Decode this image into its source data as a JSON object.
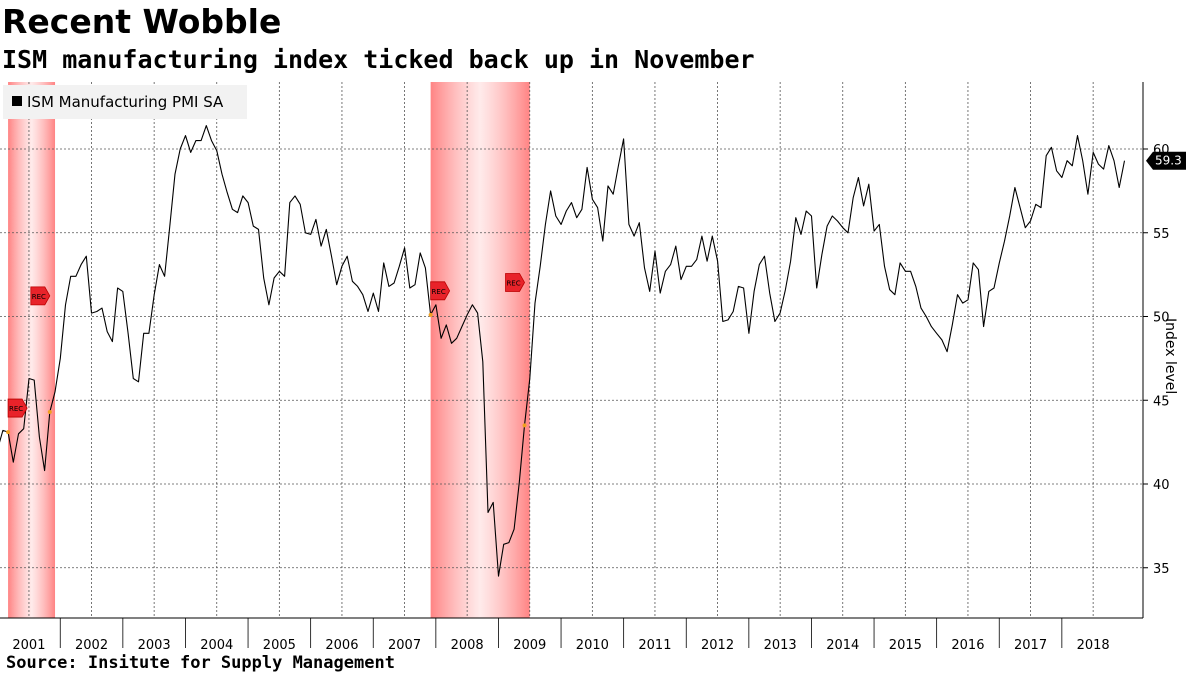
{
  "header": {
    "title": "Recent Wobble",
    "subtitle": "ISM manufacturing index ticked back up in November"
  },
  "footer": {
    "source": "Source: Insitute for Supply Management"
  },
  "colors": {
    "line": "#000000",
    "recession_band": "#ff4d4d",
    "recession_marker": "#e8232a",
    "grid": "#555555"
  },
  "chart_data": {
    "type": "line",
    "title": "Recent Wobble",
    "subtitle": "ISM manufacturing index ticked back up in November",
    "legend": {
      "entries": [
        "ISM Manufacturing PMI SA"
      ],
      "placement": "top-left"
    },
    "ylabel": "Index level",
    "ylim": [
      32,
      64
    ],
    "y_ticks": [
      35,
      40,
      45,
      50,
      55,
      60
    ],
    "x_ticks": [
      "2001",
      "2002",
      "2003",
      "2004",
      "2005",
      "2006",
      "2007",
      "2008",
      "2009",
      "2010",
      "2011",
      "2012",
      "2013",
      "2014",
      "2015",
      "2016",
      "2017",
      "2018"
    ],
    "xlim": [
      "2000-11",
      "2018-12"
    ],
    "grid": true,
    "last_value_label": "59.3",
    "recession_marker_label": "REC",
    "recessions": [
      {
        "start": "2001-03",
        "end": "2001-11"
      },
      {
        "start": "2007-12",
        "end": "2009-06"
      }
    ],
    "series": [
      {
        "name": "ISM Manufacturing PMI SA",
        "start": "2000-11",
        "frequency": "monthly",
        "values": [
          44.0,
          42.3,
          42.1,
          43.2,
          43.1,
          41.3,
          43.0,
          43.3,
          46.3,
          46.2,
          42.8,
          40.8,
          44.3,
          45.5,
          47.5,
          50.7,
          52.4,
          52.4,
          53.1,
          53.6,
          50.2,
          50.3,
          50.5,
          49.1,
          48.5,
          51.7,
          51.5,
          49.0,
          46.3,
          46.1,
          49.0,
          49.0,
          51.3,
          53.1,
          52.4,
          55.4,
          58.5,
          60.0,
          60.8,
          59.8,
          60.5,
          60.5,
          61.4,
          60.5,
          59.9,
          58.5,
          57.4,
          56.4,
          56.2,
          57.2,
          56.8,
          55.4,
          55.2,
          52.3,
          50.7,
          52.3,
          52.7,
          52.4,
          56.8,
          57.2,
          56.7,
          55.0,
          54.9,
          55.8,
          54.2,
          55.2,
          53.6,
          51.9,
          53.0,
          53.6,
          52.1,
          51.8,
          51.3,
          50.3,
          51.4,
          50.3,
          53.2,
          51.8,
          52.0,
          53.0,
          54.1,
          51.7,
          51.9,
          53.8,
          52.9,
          50.1,
          50.7,
          48.7,
          49.5,
          48.4,
          48.7,
          49.4,
          50.1,
          50.7,
          50.2,
          47.3,
          38.3,
          38.9,
          34.5,
          36.4,
          36.5,
          37.3,
          40.1,
          43.5,
          46.3,
          50.8,
          53.0,
          55.5,
          57.5,
          56.0,
          55.5,
          56.3,
          56.8,
          55.9,
          56.4,
          58.9,
          57.0,
          56.5,
          54.5,
          57.8,
          57.3,
          59.0,
          60.6,
          55.5,
          54.8,
          55.6,
          52.9,
          51.5,
          53.9,
          51.4,
          52.7,
          53.1,
          54.2,
          52.2,
          53.0,
          53.0,
          53.4,
          54.8,
          53.3,
          54.8,
          53.3,
          49.7,
          49.8,
          50.3,
          51.8,
          51.7,
          49.0,
          51.5,
          53.1,
          53.6,
          51.4,
          49.7,
          50.2,
          51.6,
          53.3,
          55.9,
          54.9,
          56.3,
          56.0,
          51.7,
          53.7,
          55.4,
          56.0,
          55.7,
          55.3,
          55.0,
          57.1,
          58.3,
          56.6,
          57.9,
          55.1,
          55.5,
          53.0,
          51.6,
          51.3,
          53.2,
          52.7,
          52.7,
          51.8,
          50.5,
          50.0,
          49.4,
          49.0,
          48.6,
          47.9,
          49.5,
          51.3,
          50.8,
          51.0,
          53.2,
          52.8,
          49.4,
          51.5,
          51.7,
          53.2,
          54.5,
          56.0,
          57.7,
          56.5,
          55.3,
          55.7,
          56.7,
          56.5,
          59.6,
          60.1,
          58.7,
          58.3,
          59.3,
          59.0,
          60.8,
          59.3,
          57.3,
          59.8,
          59.1,
          58.8,
          60.2,
          59.3,
          57.7,
          59.3
        ]
      }
    ]
  }
}
